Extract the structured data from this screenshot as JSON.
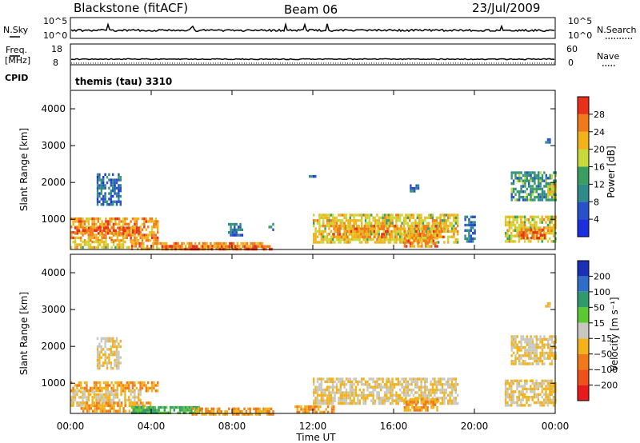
{
  "header": {
    "station": "Blackstone (fitACF)",
    "beam": "Beam 06",
    "date": "23/Jul/2009"
  },
  "strip_labels": {
    "nsky": "N.Sky",
    "nsky_top": "10^5",
    "nsky_bot": "10^0",
    "nsearch": "N.Search",
    "nsearch_top": "10^5",
    "nsearch_bot": "10^0",
    "freq_top_label": "Freq.",
    "freq_bot_label": "[MHz]",
    "freq_top": "18",
    "freq_bot": "8",
    "nave": "Nave",
    "nave_top": "60",
    "nave_bot": "0",
    "cpid": "CPID",
    "cpid_value": "themis (tau) 3310"
  },
  "colorbars": {
    "power": {
      "label": "Power [dB]",
      "ticks": [
        "4",
        "8",
        "12",
        "16",
        "20",
        "24",
        "28"
      ],
      "colors": [
        "#1c2fe0",
        "#2850c8",
        "#2f8a8a",
        "#3a9e60",
        "#c8d93a",
        "#f2b21a",
        "#f07a1a",
        "#e8301a"
      ]
    },
    "velocity": {
      "label": "Velocity [m s⁻¹]",
      "ticks": [
        "200",
        "100",
        "50",
        "15",
        "−15",
        "−50",
        "−100",
        "−200"
      ],
      "colors": [
        "#1a2fb5",
        "#2f6ec8",
        "#2f9a6a",
        "#5cc832",
        "#c8c8c0",
        "#f2b21a",
        "#f07a1a",
        "#f0501a",
        "#e81a1a"
      ]
    }
  },
  "chart_data": [
    {
      "type": "heatmap",
      "title": "",
      "xlabel": "",
      "ylabel": "Slant Range [km]",
      "xlim": [
        0,
        24
      ],
      "ylim": [
        180,
        4500
      ],
      "x_ticks": [
        "00:00",
        "04:00",
        "08:00",
        "12:00",
        "16:00",
        "20:00",
        "00:00"
      ],
      "y_ticks": [
        "1000",
        "2000",
        "3000",
        "4000"
      ],
      "quantity": "Power [dB]",
      "regions": [
        {
          "t0": 0.0,
          "t1": 4.3,
          "r0": 420,
          "r1": 1050,
          "level": 24
        },
        {
          "t0": 0.2,
          "t1": 3.4,
          "r0": 600,
          "r1": 800,
          "level": 28
        },
        {
          "t0": 0.0,
          "t1": 3.0,
          "r0": 250,
          "r1": 420,
          "level": 20
        },
        {
          "t0": 1.3,
          "t1": 2.5,
          "r0": 1400,
          "r1": 2250,
          "level": 8
        },
        {
          "t0": 3.0,
          "t1": 9.5,
          "r0": 180,
          "r1": 380,
          "level": 24
        },
        {
          "t0": 4.5,
          "t1": 10.0,
          "r0": 180,
          "r1": 300,
          "level": 28
        },
        {
          "t0": 7.8,
          "t1": 8.5,
          "r0": 600,
          "r1": 900,
          "level": 8
        },
        {
          "t0": 9.8,
          "t1": 10.0,
          "r0": 700,
          "r1": 900,
          "level": 8
        },
        {
          "t0": 11.8,
          "t1": 12.1,
          "r0": 2150,
          "r1": 2200,
          "level": 8
        },
        {
          "t0": 12.0,
          "t1": 19.2,
          "r0": 400,
          "r1": 1150,
          "level": 20
        },
        {
          "t0": 13.0,
          "t1": 18.5,
          "r0": 500,
          "r1": 850,
          "level": 24
        },
        {
          "t0": 16.5,
          "t1": 18.2,
          "r0": 280,
          "r1": 600,
          "level": 24
        },
        {
          "t0": 16.8,
          "t1": 17.2,
          "r0": 1800,
          "r1": 1950,
          "level": 8
        },
        {
          "t0": 19.5,
          "t1": 20.0,
          "r0": 400,
          "r1": 1100,
          "level": 8
        },
        {
          "t0": 21.5,
          "t1": 24.0,
          "r0": 400,
          "r1": 1100,
          "level": 20
        },
        {
          "t0": 22.2,
          "t1": 23.5,
          "r0": 500,
          "r1": 750,
          "level": 28
        },
        {
          "t0": 21.8,
          "t1": 24.0,
          "r0": 1500,
          "r1": 2300,
          "level": 12
        },
        {
          "t0": 23.6,
          "t1": 24.0,
          "r0": 1600,
          "r1": 2000,
          "level": 20
        },
        {
          "t0": 23.5,
          "t1": 23.7,
          "r0": 3100,
          "r1": 3200,
          "level": 8
        }
      ]
    },
    {
      "type": "heatmap",
      "title": "",
      "xlabel": "Time UT",
      "ylabel": "Slant Range [km]",
      "xlim": [
        0,
        24
      ],
      "ylim": [
        180,
        4500
      ],
      "x_ticks": [
        "00:00",
        "04:00",
        "08:00",
        "12:00",
        "16:00",
        "20:00",
        "00:00"
      ],
      "y_ticks": [
        "1000",
        "2000",
        "3000",
        "4000"
      ],
      "quantity": "Velocity [m s⁻¹]",
      "regions": [
        {
          "t0": 0.0,
          "t1": 4.3,
          "r0": 800,
          "r1": 1050,
          "level": -50
        },
        {
          "t0": 0.0,
          "t1": 3.5,
          "r0": 420,
          "r1": 800,
          "level": -15
        },
        {
          "t0": 0.5,
          "t1": 4.0,
          "r0": 250,
          "r1": 500,
          "level": -50
        },
        {
          "t0": 1.3,
          "t1": 2.5,
          "r0": 1400,
          "r1": 2250,
          "level": -15
        },
        {
          "t0": 3.0,
          "t1": 6.5,
          "r0": 180,
          "r1": 380,
          "level": 50
        },
        {
          "t0": 6.0,
          "t1": 10.0,
          "r0": 180,
          "r1": 340,
          "level": -50
        },
        {
          "t0": 12.0,
          "t1": 19.2,
          "r0": 450,
          "r1": 1150,
          "level": -15
        },
        {
          "t0": 16.5,
          "t1": 18.2,
          "r0": 280,
          "r1": 600,
          "level": -50
        },
        {
          "t0": 11.0,
          "t1": 13.0,
          "r0": 200,
          "r1": 400,
          "level": -50
        },
        {
          "t0": 21.5,
          "t1": 24.0,
          "r0": 400,
          "r1": 1100,
          "level": -15
        },
        {
          "t0": 21.8,
          "t1": 24.0,
          "r0": 1500,
          "r1": 2300,
          "level": -15
        },
        {
          "t0": 23.5,
          "t1": 23.7,
          "r0": 3100,
          "r1": 3200,
          "level": -15
        }
      ]
    }
  ]
}
